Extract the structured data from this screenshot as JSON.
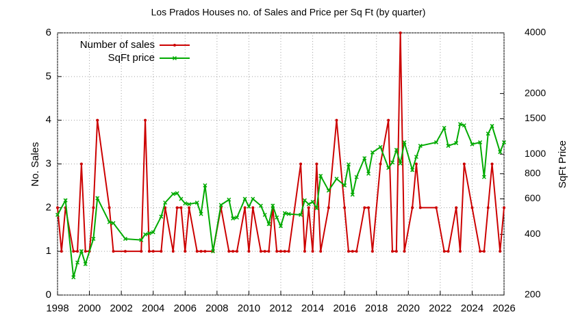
{
  "chart_data": {
    "type": "line",
    "title": "Los Prados Houses no. of Sales and Price per Sq Ft (by quarter)",
    "y_label": "No. Sales",
    "y2_label": "SqFt Price",
    "xlim": [
      1998,
      2026
    ],
    "xticks": [
      1998,
      2000,
      2002,
      2004,
      2006,
      2008,
      2010,
      2012,
      2014,
      2016,
      2018,
      2020,
      2022,
      2024,
      2026
    ],
    "ylim": [
      0,
      6
    ],
    "yticks": [
      0,
      1,
      2,
      3,
      4,
      5,
      6
    ],
    "y2lim": [
      200,
      4000
    ],
    "y2ticks": [
      200,
      400,
      600,
      800,
      1000,
      1500,
      2000,
      4000
    ],
    "y2log": true,
    "grid": true,
    "legend": "top-left",
    "series": [
      {
        "name": "Number of sales",
        "color": "#cc0000",
        "marker": "dot",
        "x": [
          1998.0,
          1998.25,
          1998.5,
          1999.0,
          1999.25,
          1999.5,
          1999.75,
          2000.0,
          2000.25,
          2000.5,
          2001.25,
          2001.5,
          2002.25,
          2003.25,
          2003.5,
          2003.75,
          2004.0,
          2004.5,
          2004.75,
          2005.25,
          2005.5,
          2005.75,
          2006.0,
          2006.25,
          2006.75,
          2007.0,
          2007.25,
          2007.75,
          2008.25,
          2008.75,
          2009.0,
          2009.25,
          2009.75,
          2010.0,
          2010.25,
          2010.75,
          2011.0,
          2011.25,
          2011.5,
          2011.75,
          2012.0,
          2012.25,
          2012.5,
          2013.25,
          2013.5,
          2013.75,
          2014.0,
          2014.25,
          2014.5,
          2015.0,
          2015.5,
          2016.0,
          2016.25,
          2016.5,
          2016.75,
          2017.25,
          2017.5,
          2017.75,
          2018.25,
          2018.75,
          2019.0,
          2019.25,
          2019.5,
          2019.75,
          2020.25,
          2020.5,
          2020.75,
          2021.75,
          2022.25,
          2022.5,
          2023.0,
          2023.25,
          2023.5,
          2024.0,
          2024.5,
          2024.75,
          2025.0,
          2025.25,
          2025.75,
          2026.0
        ],
        "values": [
          2,
          1,
          2,
          1,
          1,
          3,
          1,
          1,
          2,
          4,
          2,
          1,
          1,
          1,
          4,
          1,
          1,
          1,
          2,
          1,
          2,
          2,
          1,
          2,
          1,
          1,
          1,
          1,
          2,
          1,
          1,
          1,
          2,
          1,
          2,
          1,
          1,
          1,
          2,
          1,
          1,
          1,
          1,
          3,
          1,
          2,
          1,
          3,
          1,
          2,
          4,
          2,
          1,
          1,
          1,
          2,
          2,
          1,
          3,
          4,
          1,
          1,
          6,
          1,
          2,
          3,
          2,
          2,
          1,
          1,
          2,
          1,
          3,
          2,
          1,
          1,
          2,
          3,
          1,
          2
        ]
      },
      {
        "name": "SqFt price",
        "color": "#00aa00",
        "marker": "cross",
        "axis": "y2",
        "x": [
          1998.0,
          1998.5,
          1999.0,
          1999.25,
          1999.5,
          1999.75,
          2000.25,
          2000.5,
          2001.25,
          2001.5,
          2002.25,
          2003.25,
          2003.5,
          2003.75,
          2004.0,
          2004.5,
          2004.75,
          2005.25,
          2005.5,
          2005.75,
          2006.0,
          2006.25,
          2006.75,
          2007.0,
          2007.25,
          2007.75,
          2008.25,
          2008.75,
          2009.0,
          2009.25,
          2009.75,
          2010.0,
          2010.25,
          2010.75,
          2011.0,
          2011.25,
          2011.5,
          2011.75,
          2012.0,
          2012.25,
          2012.5,
          2013.25,
          2013.5,
          2013.75,
          2014.0,
          2014.25,
          2014.5,
          2015.0,
          2015.5,
          2016.0,
          2016.25,
          2016.5,
          2016.75,
          2017.25,
          2017.5,
          2017.75,
          2018.25,
          2018.75,
          2019.0,
          2019.25,
          2019.5,
          2019.75,
          2020.25,
          2020.5,
          2020.75,
          2021.75,
          2022.25,
          2022.5,
          2023.0,
          2023.25,
          2023.5,
          2024.0,
          2024.5,
          2024.75,
          2025.0,
          2025.25,
          2025.75,
          2026.0
        ],
        "values": [
          500,
          590,
          245,
          290,
          330,
          285,
          380,
          605,
          460,
          455,
          380,
          375,
          400,
          405,
          410,
          490,
          575,
          635,
          640,
          600,
          570,
          565,
          575,
          505,
          700,
          330,
          560,
          595,
          480,
          485,
          600,
          550,
          600,
          555,
          500,
          450,
          555,
          485,
          440,
          510,
          505,
          500,
          590,
          565,
          580,
          540,
          780,
          660,
          755,
          700,
          890,
          630,
          770,
          955,
          800,
          1020,
          1085,
          855,
          910,
          1050,
          900,
          1145,
          835,
          970,
          1100,
          1145,
          1350,
          1100,
          1135,
          1410,
          1390,
          1120,
          1145,
          770,
          1265,
          1380,
          1025,
          1145
        ]
      }
    ]
  }
}
